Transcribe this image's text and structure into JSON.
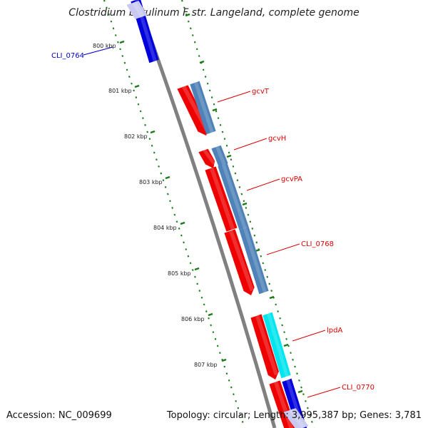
{
  "title": "Clostridium botulinum F str. Langeland, complete genome",
  "footer": {
    "accession": "Accession: NC_009699",
    "summary": "Topology: circular; Length: 3,995,387 bp; Genes: 3,781"
  },
  "kbp_labels": [
    "800 kbp",
    "801 kbp",
    "802 kbp",
    "803 kbp",
    "804 kbp",
    "805 kbp",
    "806 kbp",
    "807 kbp"
  ],
  "genes": [
    {
      "label": "CLI_0764",
      "color": "#0000cc"
    },
    {
      "label": "gcvT",
      "color": "#dd0000"
    },
    {
      "label": "gcvH",
      "color": "#dd0000"
    },
    {
      "label": "gcvPA",
      "color": "#dd0000"
    },
    {
      "label": "CLI_0768",
      "color": "#dd0000"
    },
    {
      "label": "lpdA",
      "color": "#dd0000"
    },
    {
      "label": "CLI_0770",
      "color": "#dd0000"
    }
  ],
  "colors": {
    "backbone": "#808080",
    "cds": "#ee0000",
    "cog_steel": "#4f82b8",
    "cog_cyan": "#00e5ee",
    "cog_blue": "#0000dd",
    "ticks": "#1a7a1a"
  }
}
